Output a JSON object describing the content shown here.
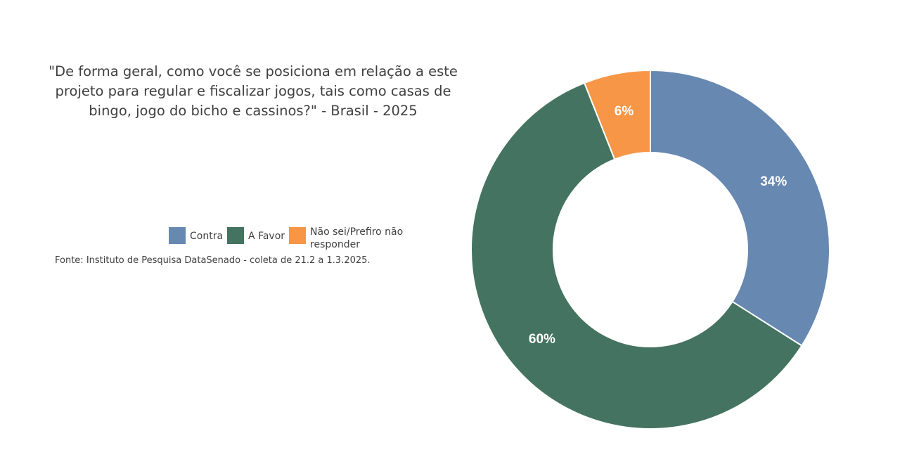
{
  "chart_data": {
    "type": "pie",
    "title": "\"De forma geral, como você se posiciona em relação a este projeto para regular e fiscalizar jogos, tais como casas de bingo, jogo do bicho e cassinos?\" - Brasil - 2025",
    "categories": [
      "Contra",
      "A Favor",
      "Não sei/Prefiro não responder"
    ],
    "values": [
      34,
      60,
      6
    ],
    "data_labels": [
      "34%",
      "60%",
      "6%"
    ],
    "colors": [
      "#6788b1",
      "#447361",
      "#f79646"
    ],
    "donut": true,
    "legend_placement": "left"
  },
  "source": "Fonte: Instituto de Pesquisa DataSenado - coleta de 21.2 a 1.3.2025."
}
